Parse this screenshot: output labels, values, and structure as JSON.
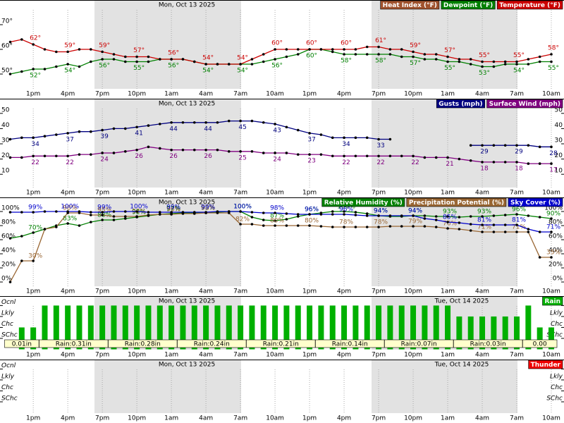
{
  "chart_data": [
    {
      "type": "line",
      "headers": [
        "Mon, Oct 13 2025"
      ],
      "categories": [
        null,
        null,
        "1pm",
        null,
        null,
        "4pm",
        null,
        null,
        "7pm",
        null,
        null,
        "10pm",
        null,
        null,
        "1am",
        null,
        null,
        "4am",
        null,
        null,
        "7am",
        null,
        null,
        "10am",
        null,
        null,
        "1pm",
        null,
        null,
        "4pm",
        null,
        null,
        "7pm",
        null,
        null,
        "10pm",
        null,
        null,
        "1am",
        null,
        null,
        "4am",
        null,
        null,
        "7am",
        null,
        null,
        "10am"
      ],
      "ylim": [
        45,
        75
      ],
      "yticks": [
        {
          "value": 50,
          "label": "50°"
        },
        {
          "value": 60,
          "label": "60°"
        },
        {
          "value": 70,
          "label": "70°"
        }
      ],
      "legend": "upper right",
      "series": [
        {
          "name": "Heat Index (°F)",
          "color": "#a0522d",
          "values": [
            null,
            null,
            null,
            null,
            null,
            null,
            null,
            null,
            null,
            null,
            null,
            null,
            null,
            null,
            null,
            null,
            null,
            null,
            null,
            null,
            null,
            null,
            null,
            null,
            null,
            null,
            null,
            null,
            null,
            null,
            null,
            null,
            null,
            null,
            null,
            null,
            null,
            null,
            null,
            null,
            null,
            null,
            null,
            null,
            null,
            null,
            null,
            null
          ]
        },
        {
          "name": "Dewpoint (°F)",
          "color": "#008000",
          "values": [
            50,
            51,
            52,
            52,
            53,
            54,
            53,
            55,
            56,
            56,
            55,
            55,
            55,
            56,
            56,
            56,
            55,
            54,
            54,
            54,
            54,
            54,
            55,
            56,
            57,
            58,
            60,
            60,
            59,
            58,
            58,
            58,
            58,
            58,
            57,
            57,
            56,
            56,
            55,
            55,
            54,
            53,
            53,
            54,
            54,
            54,
            55,
            55
          ],
          "value_labels": [
            null,
            null,
            "52°",
            null,
            null,
            "54°",
            null,
            null,
            "56°",
            null,
            null,
            "55°",
            null,
            null,
            "56°",
            null,
            null,
            "54°",
            null,
            null,
            "54°",
            null,
            null,
            "56°",
            null,
            null,
            "60°",
            null,
            null,
            "58°",
            null,
            null,
            "58°",
            null,
            null,
            "57°",
            null,
            null,
            "55°",
            null,
            null,
            "53°",
            null,
            null,
            "54°",
            null,
            null,
            "55°"
          ]
        },
        {
          "name": "Temperature (°F)",
          "color": "#cc0000",
          "values": [
            63,
            64,
            62,
            60,
            59,
            59,
            60,
            60,
            59,
            58,
            57,
            57,
            57,
            56,
            56,
            56,
            55,
            54,
            54,
            54,
            54,
            56,
            58,
            60,
            60,
            60,
            60,
            60,
            60,
            60,
            60,
            61,
            61,
            60,
            60,
            59,
            58,
            58,
            57,
            56,
            56,
            55,
            55,
            55,
            55,
            56,
            57,
            58
          ],
          "value_labels": [
            null,
            null,
            "62°",
            null,
            null,
            "59°",
            null,
            null,
            "59°",
            null,
            null,
            "57°",
            null,
            null,
            "56°",
            null,
            null,
            "54°",
            null,
            null,
            "54°",
            null,
            null,
            "60°",
            null,
            null,
            "60°",
            null,
            null,
            "60°",
            null,
            null,
            "61°",
            null,
            null,
            "59°",
            null,
            null,
            "57°",
            null,
            null,
            "55°",
            null,
            null,
            "55°",
            null,
            null,
            "58°"
          ]
        }
      ]
    },
    {
      "type": "line",
      "headers": [
        "Mon, Oct 13 2025"
      ],
      "categories": [
        null,
        null,
        "1pm",
        null,
        null,
        "4pm",
        null,
        null,
        "7pm",
        null,
        null,
        "10pm",
        null,
        null,
        "1am",
        null,
        null,
        "4am",
        null,
        null,
        "7am",
        null,
        null,
        "10am",
        null,
        null,
        "1pm",
        null,
        null,
        "4pm",
        null,
        null,
        "7pm",
        null,
        null,
        "10pm",
        null,
        null,
        "1am",
        null,
        null,
        "4am",
        null,
        null,
        "7am",
        null,
        null,
        "10am"
      ],
      "ylim": [
        5,
        55
      ],
      "yticks": [
        10,
        20,
        30,
        40,
        50
      ],
      "legend": "upper right",
      "series": [
        {
          "name": "Gusts (mph)",
          "color": "#000080",
          "values": [
            33,
            34,
            34,
            35,
            36,
            37,
            38,
            38,
            39,
            40,
            40,
            41,
            42,
            43,
            44,
            44,
            44,
            44,
            44,
            45,
            45,
            45,
            44,
            43,
            41,
            39,
            37,
            36,
            34,
            34,
            34,
            34,
            33,
            33,
            null,
            null,
            null,
            null,
            null,
            null,
            29,
            29,
            29,
            29,
            29,
            29,
            28,
            28
          ]
        },
        {
          "name": "Surface Wind (mph)",
          "color": "#800080",
          "values": [
            21,
            21,
            22,
            22,
            22,
            22,
            23,
            23,
            24,
            24,
            25,
            26,
            28,
            27,
            26,
            26,
            26,
            26,
            26,
            25,
            25,
            25,
            24,
            24,
            24,
            23,
            23,
            23,
            22,
            22,
            22,
            22,
            22,
            22,
            22,
            22,
            21,
            21,
            21,
            20,
            19,
            18,
            18,
            18,
            18,
            17,
            17,
            17
          ]
        }
      ]
    },
    {
      "type": "line",
      "headers": [
        "Mon, Oct 13 2025"
      ],
      "categories": [
        null,
        null,
        "1pm",
        null,
        null,
        "4pm",
        null,
        null,
        "7pm",
        null,
        null,
        "10pm",
        null,
        null,
        "1am",
        null,
        null,
        "4am",
        null,
        null,
        "7am",
        null,
        null,
        "10am",
        null,
        null,
        "1pm",
        null,
        null,
        "4pm",
        null,
        null,
        "7pm",
        null,
        null,
        "10pm",
        null,
        null,
        "1am",
        null,
        null,
        "4am",
        null,
        null,
        "7am",
        null,
        null,
        "10am"
      ],
      "ylim": [
        -10,
        110
      ],
      "yticks": [
        {
          "value": 0,
          "label": "0%"
        },
        {
          "value": 20,
          "label": "20%"
        },
        {
          "value": 40,
          "label": "40%"
        },
        {
          "value": 60,
          "label": "60%"
        },
        {
          "value": 80,
          "label": "80%"
        },
        {
          "value": 100,
          "label": "100%"
        }
      ],
      "legend": "upper right",
      "series": [
        {
          "name": "Relative Humidity (%)",
          "color": "#008000",
          "values": [
            62,
            65,
            70,
            75,
            80,
            83,
            80,
            85,
            88,
            88,
            90,
            92,
            94,
            96,
            97,
            98,
            98,
            98,
            99,
            100,
            100,
            92,
            88,
            87,
            89,
            93,
            96,
            98,
            100,
            100,
            99,
            97,
            94,
            93,
            93,
            94,
            94,
            93,
            93,
            92,
            93,
            93,
            94,
            95,
            96,
            94,
            92,
            90
          ],
          "value_labels": [
            null,
            null,
            "70%",
            null,
            null,
            "83%",
            null,
            null,
            "88%",
            null,
            null,
            "92%",
            null,
            null,
            "97%",
            null,
            null,
            "98%",
            null,
            null,
            "100%",
            null,
            null,
            "87%",
            null,
            null,
            "96%",
            null,
            null,
            "100%",
            null,
            null,
            "94%",
            null,
            null,
            "94%",
            null,
            null,
            "93%",
            null,
            null,
            "93%",
            null,
            null,
            "96%",
            null,
            null,
            "90%"
          ]
        },
        {
          "name": "Precipitation Potential (%)",
          "color": "#996633",
          "values": [
            0,
            30,
            30,
            75,
            78,
            98,
            98,
            95,
            95,
            93,
            93,
            93,
            95,
            96,
            96,
            97,
            97,
            98,
            98,
            98,
            82,
            82,
            80,
            80,
            80,
            80,
            80,
            79,
            78,
            78,
            78,
            78,
            78,
            79,
            79,
            79,
            79,
            78,
            76,
            75,
            73,
            71,
            71,
            71,
            71,
            71,
            35,
            35
          ],
          "value_labels": [
            null,
            null,
            "30%",
            null,
            null,
            "98%",
            null,
            null,
            "95%",
            null,
            null,
            "93%",
            null,
            null,
            "96%",
            null,
            null,
            "98%",
            null,
            null,
            "82%",
            null,
            null,
            "80%",
            null,
            null,
            "80%",
            null,
            null,
            "78%",
            null,
            null,
            "78%",
            null,
            null,
            "79%",
            null,
            null,
            "76%",
            null,
            null,
            "71%",
            null,
            null,
            "71%",
            null,
            null,
            "35%"
          ]
        },
        {
          "name": "Sky Cover (%)",
          "color": "#0000cc",
          "values": [
            99,
            99,
            99,
            100,
            100,
            100,
            100,
            99,
            99,
            100,
            100,
            100,
            99,
            99,
            99,
            99,
            99,
            99,
            100,
            100,
            100,
            99,
            98,
            98,
            97,
            96,
            96,
            96,
            96,
            96,
            95,
            94,
            94,
            94,
            94,
            94,
            90,
            88,
            85,
            84,
            82,
            81,
            81,
            81,
            81,
            75,
            71,
            71
          ],
          "value_labels": [
            null,
            null,
            "99%",
            null,
            null,
            "100%",
            null,
            null,
            "99%",
            null,
            null,
            "100%",
            null,
            null,
            "99%",
            null,
            null,
            "99%",
            null,
            null,
            "100%",
            null,
            null,
            "98%",
            null,
            null,
            "96%",
            null,
            null,
            "96%",
            null,
            null,
            "94%",
            null,
            null,
            "94%",
            null,
            null,
            "85%",
            null,
            null,
            "81%",
            null,
            null,
            "81%",
            null,
            null,
            "71%"
          ]
        }
      ]
    },
    {
      "type": "bar",
      "headers": [
        "Mon, Oct 13 2025",
        "Tue, Oct 14 2025"
      ],
      "categories": [
        null,
        null,
        "1pm",
        null,
        null,
        "4pm",
        null,
        null,
        "7pm",
        null,
        null,
        "10pm",
        null,
        null,
        "1am",
        null,
        null,
        "4am",
        null,
        null,
        "7am",
        null,
        null,
        "10am",
        null,
        null,
        "1pm",
        null,
        null,
        "4pm",
        null,
        null,
        "7pm",
        null,
        null,
        "10pm",
        null,
        null,
        "1am",
        null,
        null,
        "4am",
        null,
        null,
        "7am",
        null,
        null,
        "10am"
      ],
      "ylim": [
        0,
        4.25
      ],
      "yticks": [
        {
          "value": 1,
          "label": "SChc"
        },
        {
          "value": 2,
          "label": "Chc"
        },
        {
          "value": 3,
          "label": "Lkly"
        },
        {
          "value": 4,
          "label": "Ocnl"
        }
      ],
      "legend": "upper right",
      "period_labels": [
        "0.01in",
        "Rain:0.31in",
        "Rain:0.28in",
        "Rain:0.24in",
        "Rain:0.21in",
        "Rain:0.14in",
        "Rain:0.07in",
        "Rain:0.03in",
        "0.00"
      ],
      "series": [
        {
          "name": "Rain",
          "color": "#00b000",
          "values": [
            null,
            2,
            2,
            4,
            4,
            4,
            4,
            4,
            4,
            4,
            4,
            4,
            4,
            4,
            4,
            4,
            4,
            4,
            4,
            4,
            4,
            4,
            4,
            4,
            4,
            4,
            4,
            4,
            4,
            4,
            4,
            4,
            4,
            4,
            4,
            4,
            4,
            4,
            4,
            3,
            3,
            3,
            3,
            3,
            3,
            4,
            2,
            2
          ]
        }
      ]
    },
    {
      "type": "bar",
      "headers": [
        "Mon, Oct 13 2025",
        "Tue, Oct 14 2025"
      ],
      "categories": [
        null,
        null,
        "1pm",
        null,
        null,
        "4pm",
        null,
        null,
        "7pm",
        null,
        null,
        "10pm",
        null,
        null,
        "1am",
        null,
        null,
        "4am",
        null,
        null,
        "7am",
        null,
        null,
        "10am",
        null,
        null,
        "1pm",
        null,
        null,
        "4pm",
        null,
        null,
        "7pm",
        null,
        null,
        "10pm",
        null,
        null,
        "1am",
        null,
        null,
        "4am",
        null,
        null,
        "7am",
        null,
        null,
        "10am"
      ],
      "ylim": [
        0,
        4.25
      ],
      "yticks": [
        {
          "value": 1,
          "label": "SChc"
        },
        {
          "value": 2,
          "label": "Chc"
        },
        {
          "value": 3,
          "label": "Lkly"
        },
        {
          "value": 4,
          "label": "Ocnl"
        }
      ],
      "legend": "upper right",
      "series": [
        {
          "name": "Thunder",
          "color": "#ee0000",
          "values": [
            null,
            null,
            null,
            null,
            null,
            null,
            null,
            null,
            null,
            null,
            null,
            null,
            null,
            null,
            null,
            null,
            null,
            null,
            null,
            null,
            null,
            null,
            null,
            null,
            null,
            null,
            null,
            null,
            null,
            null,
            null,
            null,
            null,
            null,
            null,
            null,
            null,
            null,
            null,
            null,
            null,
            null,
            null,
            null,
            null,
            null,
            null,
            null
          ]
        }
      ]
    }
  ]
}
